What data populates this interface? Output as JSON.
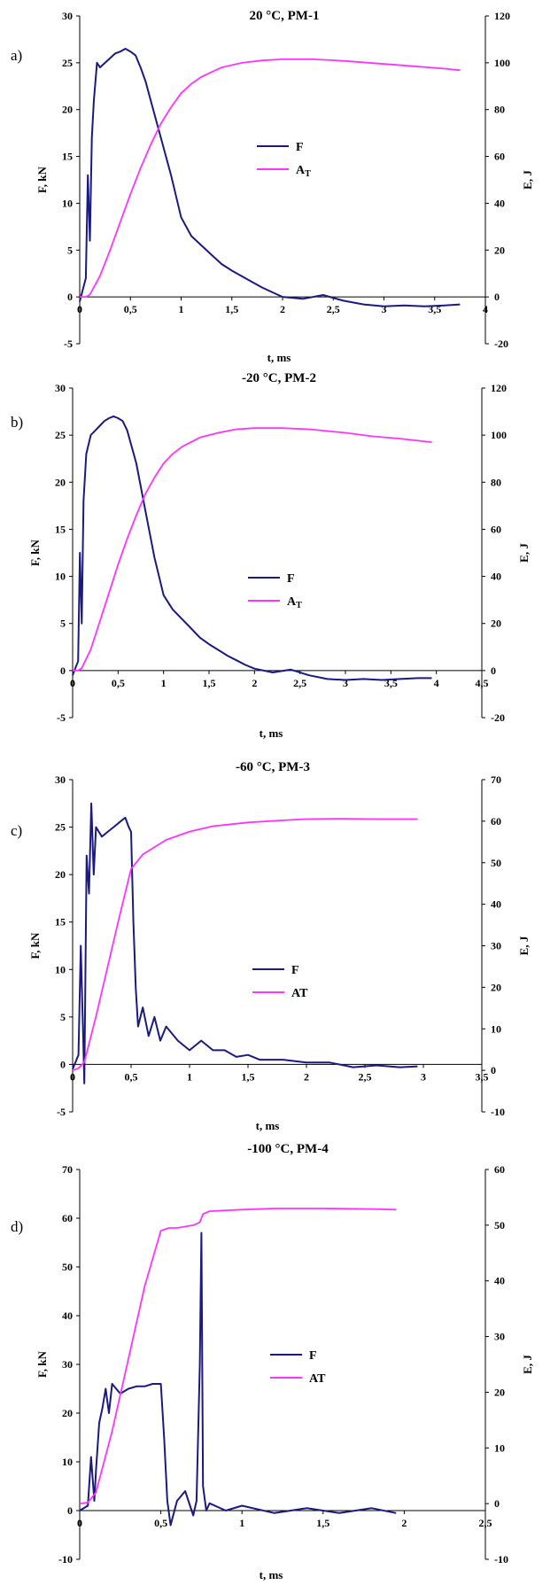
{
  "figure": {
    "panels": [
      {
        "letter": "a)",
        "title": "20 °C, PM-1"
      },
      {
        "letter": "b)",
        "title": "-20 °C, PM-2"
      },
      {
        "letter": "c)",
        "title": "-60 °C, PM-3"
      },
      {
        "letter": "d)",
        "title": "-100 °C, PM-4"
      }
    ]
  },
  "colors": {
    "force": "#1a1a80",
    "energy": "#ff33ff",
    "axis": "#000000"
  },
  "chart_data": [
    {
      "type": "line",
      "title": "20 °C, PM-1",
      "xlabel": "t, ms",
      "ylabel": "F, kN",
      "y2label": "E, J",
      "xlim": [
        0,
        4
      ],
      "ylim": [
        -5,
        30
      ],
      "y2lim": [
        -20,
        120
      ],
      "xticks": [
        0,
        0.5,
        1,
        1.5,
        2,
        2.5,
        3,
        3.5,
        4
      ],
      "xtick_labels": [
        "0",
        "0,5",
        "1",
        "1,5",
        "2",
        "2,5",
        "3",
        "3,5",
        "4"
      ],
      "yticks": [
        -5,
        0,
        5,
        10,
        15,
        20,
        25,
        30
      ],
      "ytick_labels": [
        "-5",
        "0",
        "5",
        "10",
        "15",
        "20",
        "25",
        "30"
      ],
      "y2ticks": [
        -20,
        0,
        20,
        40,
        60,
        80,
        100,
        120
      ],
      "y2tick_labels": [
        "-20",
        "0",
        "20",
        "40",
        "60",
        "80",
        "100",
        "120"
      ],
      "legend": {
        "position": "center-right",
        "entries": [
          "F",
          "AT"
        ],
        "subscript": [
          false,
          true
        ]
      },
      "series": [
        {
          "name": "F",
          "axis": "left",
          "x": [
            0,
            0.06,
            0.08,
            0.1,
            0.12,
            0.14,
            0.17,
            0.2,
            0.25,
            0.3,
            0.35,
            0.4,
            0.45,
            0.5,
            0.55,
            0.6,
            0.65,
            0.7,
            0.8,
            0.9,
            1.0,
            1.1,
            1.2,
            1.3,
            1.4,
            1.5,
            1.6,
            1.7,
            1.8,
            1.9,
            2.0,
            2.2,
            2.4,
            2.6,
            2.8,
            3.0,
            3.2,
            3.4,
            3.6,
            3.75
          ],
          "y": [
            -0.5,
            2,
            13,
            6,
            17,
            21,
            25,
            24.5,
            25,
            25.5,
            26,
            26.2,
            26.5,
            26.2,
            25.8,
            24.5,
            23,
            21,
            17,
            13,
            8.5,
            6.5,
            5.5,
            4.5,
            3.5,
            2.8,
            2.2,
            1.6,
            1.0,
            0.5,
            0,
            -0.2,
            0.2,
            -0.4,
            -0.8,
            -1.0,
            -0.9,
            -1.0,
            -0.9,
            -0.8
          ]
        },
        {
          "name": "AT",
          "axis": "right",
          "x": [
            0,
            0.06,
            0.1,
            0.2,
            0.3,
            0.4,
            0.5,
            0.6,
            0.7,
            0.8,
            0.9,
            1.0,
            1.1,
            1.2,
            1.4,
            1.6,
            1.8,
            2.0,
            2.3,
            2.6,
            3.0,
            3.3,
            3.6,
            3.75
          ],
          "y": [
            0,
            0,
            1,
            9,
            20,
            32,
            44,
            55,
            65,
            74,
            81,
            87,
            91,
            94,
            98,
            100,
            101,
            101.5,
            101.5,
            100.8,
            99.5,
            98.5,
            97.5,
            96.8
          ]
        }
      ]
    },
    {
      "type": "line",
      "title": "-20 °C, PM-2",
      "xlabel": "t, ms",
      "ylabel": "F, kN",
      "y2label": "E, J",
      "xlim": [
        0,
        4.5
      ],
      "ylim": [
        -5,
        30
      ],
      "y2lim": [
        -20,
        120
      ],
      "xticks": [
        0,
        0.5,
        1,
        1.5,
        2,
        2.5,
        3,
        3.5,
        4,
        4.5
      ],
      "xtick_labels": [
        "0",
        "0,5",
        "1",
        "1,5",
        "2",
        "2,5",
        "3",
        "3,5",
        "4",
        "4,5"
      ],
      "yticks": [
        -5,
        0,
        5,
        10,
        15,
        20,
        25,
        30
      ],
      "ytick_labels": [
        "-5",
        "0",
        "5",
        "10",
        "15",
        "20",
        "25",
        "30"
      ],
      "y2ticks": [
        -20,
        0,
        20,
        40,
        60,
        80,
        100,
        120
      ],
      "y2tick_labels": [
        "-20",
        "0",
        "20",
        "40",
        "60",
        "80",
        "100",
        "120"
      ],
      "legend": {
        "position": "center-right",
        "entries": [
          "F",
          "AT"
        ],
        "subscript": [
          false,
          true
        ]
      },
      "series": [
        {
          "name": "F",
          "axis": "left",
          "x": [
            0,
            0.06,
            0.08,
            0.1,
            0.12,
            0.15,
            0.2,
            0.25,
            0.3,
            0.35,
            0.4,
            0.45,
            0.5,
            0.55,
            0.6,
            0.7,
            0.8,
            0.9,
            1.0,
            1.1,
            1.2,
            1.3,
            1.4,
            1.5,
            1.6,
            1.7,
            1.8,
            1.9,
            2.0,
            2.2,
            2.4,
            2.6,
            2.8,
            3.0,
            3.2,
            3.4,
            3.6,
            3.8,
            3.95
          ],
          "y": [
            -0.5,
            1,
            12.5,
            5,
            18,
            23,
            25,
            25.5,
            26,
            26.5,
            26.8,
            27,
            26.8,
            26.5,
            25.5,
            22,
            17,
            12,
            8,
            6.5,
            5.5,
            4.5,
            3.5,
            2.8,
            2.2,
            1.6,
            1.1,
            0.6,
            0.2,
            -0.2,
            0.1,
            -0.5,
            -0.9,
            -1.0,
            -0.9,
            -1.0,
            -0.9,
            -0.8,
            -0.8
          ]
        },
        {
          "name": "AT",
          "axis": "right",
          "x": [
            0,
            0.06,
            0.1,
            0.2,
            0.3,
            0.4,
            0.5,
            0.6,
            0.7,
            0.8,
            0.9,
            1.0,
            1.1,
            1.2,
            1.4,
            1.6,
            1.8,
            2.0,
            2.3,
            2.6,
            3.0,
            3.3,
            3.6,
            3.95
          ],
          "y": [
            0,
            0,
            1,
            9,
            21,
            33,
            45,
            56,
            66,
            75,
            82,
            88,
            92,
            95,
            99,
            101,
            102.5,
            103,
            103,
            102.5,
            101,
            99.5,
            98.5,
            97
          ]
        }
      ]
    },
    {
      "type": "line",
      "title": "-60 °C, PM-3",
      "xlabel": "t, ms",
      "ylabel": "F, kN",
      "y2label": "E, J",
      "xlim": [
        0,
        3.5
      ],
      "ylim": [
        -5,
        30
      ],
      "y2lim": [
        -10,
        70
      ],
      "xticks": [
        0,
        0.5,
        1,
        1.5,
        2,
        2.5,
        3,
        3.5
      ],
      "xtick_labels": [
        "0",
        "0,5",
        "1",
        "1,5",
        "2",
        "2,5",
        "3",
        "3,5"
      ],
      "yticks": [
        -5,
        0,
        5,
        10,
        15,
        20,
        25,
        30
      ],
      "ytick_labels": [
        "-5",
        "0",
        "5",
        "10",
        "15",
        "20",
        "25",
        "30"
      ],
      "y2ticks": [
        -10,
        0,
        10,
        20,
        30,
        40,
        50,
        60,
        70
      ],
      "y2tick_labels": [
        "-10",
        "0",
        "10",
        "20",
        "30",
        "40",
        "50",
        "60",
        "70"
      ],
      "legend": {
        "position": "center-right",
        "entries": [
          "F",
          "AT"
        ],
        "subscript": [
          false,
          false
        ]
      },
      "series": [
        {
          "name": "F",
          "axis": "left",
          "x": [
            0,
            0.05,
            0.07,
            0.09,
            0.1,
            0.12,
            0.14,
            0.16,
            0.18,
            0.2,
            0.25,
            0.3,
            0.35,
            0.4,
            0.45,
            0.48,
            0.5,
            0.52,
            0.54,
            0.56,
            0.6,
            0.65,
            0.7,
            0.75,
            0.8,
            0.9,
            1.0,
            1.1,
            1.2,
            1.3,
            1.4,
            1.5,
            1.6,
            1.8,
            2.0,
            2.2,
            2.4,
            2.6,
            2.8,
            2.95
          ],
          "y": [
            -0.5,
            1,
            12.5,
            3,
            -2,
            22,
            18,
            27.5,
            20,
            25,
            24,
            24.5,
            25,
            25.5,
            26,
            25,
            24.5,
            15,
            8,
            4,
            6,
            3,
            5,
            2.5,
            4,
            2.5,
            1.5,
            2.5,
            1.5,
            1.5,
            0.8,
            1,
            0.5,
            0.5,
            0.2,
            0.2,
            -0.3,
            -0.1,
            -0.3,
            -0.2
          ]
        },
        {
          "name": "AT",
          "axis": "right",
          "x": [
            0,
            0.05,
            0.1,
            0.2,
            0.3,
            0.4,
            0.5,
            0.6,
            0.8,
            1.0,
            1.2,
            1.5,
            1.8,
            2.0,
            2.3,
            2.6,
            2.95
          ],
          "y": [
            0,
            0.5,
            2,
            13,
            25,
            37,
            48.5,
            52,
            55.5,
            57.5,
            58.8,
            59.7,
            60.2,
            60.5,
            60.6,
            60.5,
            60.5
          ]
        }
      ]
    },
    {
      "type": "line",
      "title": "-100 °C, PM-4",
      "xlabel": "t, ms",
      "ylabel": "F, kN",
      "y2label": "E, J",
      "xlim": [
        0,
        2.5
      ],
      "ylim": [
        -10,
        70
      ],
      "y2lim": [
        -10,
        60
      ],
      "xticks": [
        0,
        0.5,
        1,
        1.5,
        2,
        2.5
      ],
      "xtick_labels": [
        "0",
        "0,5",
        "1",
        "1,5",
        "2",
        "2,5"
      ],
      "yticks": [
        -10,
        0,
        10,
        20,
        30,
        40,
        50,
        60,
        70
      ],
      "ytick_labels": [
        "-10",
        "0",
        "10",
        "20",
        "30",
        "40",
        "50",
        "60",
        "70"
      ],
      "y2ticks": [
        -10,
        0,
        10,
        20,
        30,
        40,
        50,
        60
      ],
      "y2tick_labels": [
        "-10",
        "0",
        "10",
        "20",
        "30",
        "40",
        "50",
        "60"
      ],
      "legend": {
        "position": "center-right",
        "entries": [
          "F",
          "AT"
        ],
        "subscript": [
          false,
          false
        ]
      },
      "series": [
        {
          "name": "F",
          "axis": "left",
          "x": [
            0,
            0.05,
            0.07,
            0.09,
            0.1,
            0.12,
            0.14,
            0.16,
            0.18,
            0.2,
            0.25,
            0.3,
            0.35,
            0.4,
            0.45,
            0.5,
            0.52,
            0.54,
            0.56,
            0.6,
            0.65,
            0.7,
            0.72,
            0.74,
            0.75,
            0.76,
            0.78,
            0.8,
            0.9,
            1.0,
            1.2,
            1.4,
            1.6,
            1.8,
            1.95
          ],
          "y": [
            0,
            1,
            11,
            2,
            8,
            18,
            21,
            25,
            20,
            26,
            24,
            25,
            25.5,
            25.5,
            26,
            26,
            15,
            2,
            -3,
            2,
            4,
            -1,
            2,
            30,
            57,
            5,
            0,
            1.5,
            0,
            1,
            -0.5,
            0.5,
            -0.5,
            0.5,
            -0.5
          ]
        },
        {
          "name": "AT",
          "axis": "right",
          "x": [
            0,
            0.05,
            0.1,
            0.2,
            0.3,
            0.4,
            0.5,
            0.55,
            0.6,
            0.7,
            0.74,
            0.76,
            0.8,
            1.0,
            1.2,
            1.5,
            1.8,
            1.95
          ],
          "y": [
            0,
            0.2,
            2,
            13,
            26,
            39,
            49,
            49.5,
            49.5,
            50,
            50.5,
            52,
            52.5,
            52.8,
            53,
            53,
            52.9,
            52.8
          ]
        }
      ]
    }
  ]
}
